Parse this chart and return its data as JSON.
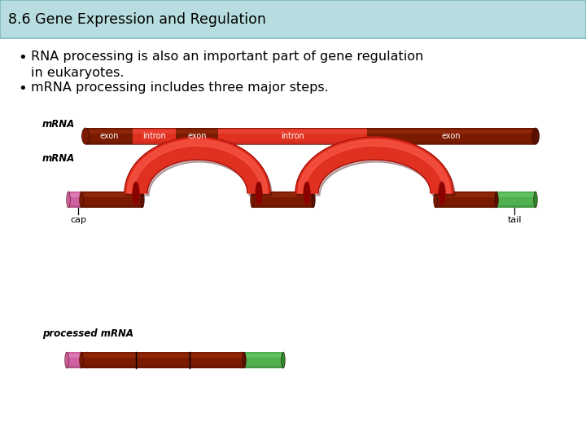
{
  "title": "8.6 Gene Expression and Regulation",
  "title_bg": "#b8dde0",
  "bg_color": "#ffffff",
  "bullet1": "RNA processing is also an important part of gene regulation\nin eukaryotes.",
  "bullet2": "mRNA processing includes three major steps.",
  "mrna_label": "mRNA",
  "mrna_label2": "mRNA",
  "processed_label": "processed mRNA",
  "cap_label": "cap",
  "tail_label": "tail",
  "exon_color": "#7a1a00",
  "exon_light": "#a03010",
  "intron_color": "#e03020",
  "intron_light": "#f05040",
  "cap_color": "#d060a0",
  "tail_color": "#50b050",
  "arc_color": "#e03020",
  "arc_dark": "#8b0000",
  "arc_shadow": "#cc2010"
}
